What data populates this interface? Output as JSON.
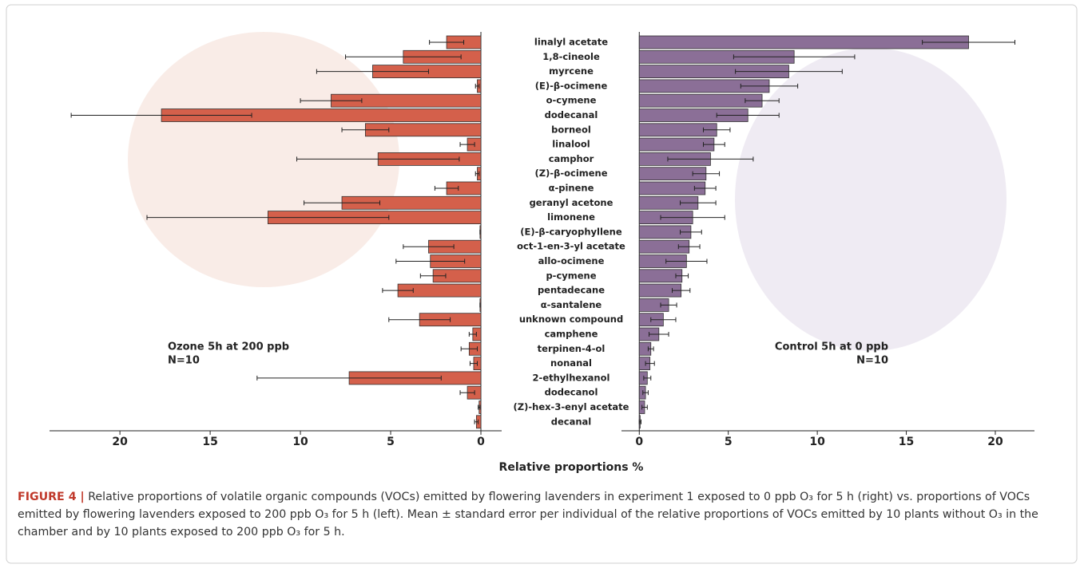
{
  "chart_data": [
    {
      "type": "bar",
      "orientation": "horizontal",
      "categories": [
        "linalyl acetate",
        "1,8-cineole",
        "myrcene",
        "(E)-β-ocimene",
        "o-cymene",
        "dodecanal",
        "borneol",
        "linalool",
        "camphor",
        "(Z)-β-ocimene",
        "α-pinene",
        "geranyl acetone",
        "limonene",
        "(E)-β-caryophyllene",
        "oct-1-en-3-yl acetate",
        "allo-ocimene",
        "p-cymene",
        "pentadecane",
        "α-santalene",
        "unknown compound",
        "camphene",
        "terpinen-4-ol",
        "nonanal",
        "2-ethylhexanol",
        "dodecanol",
        "(Z)-hex-3-enyl acetate",
        "decanal"
      ],
      "xlabel": "Relative proportions %",
      "annotation": [
        "Ozone 5h at 200 ppb",
        "N=10"
      ],
      "color": "#d4604b",
      "values": [
        1.9,
        4.3,
        6.0,
        0.2,
        8.3,
        17.7,
        6.4,
        0.75,
        5.7,
        0.2,
        1.9,
        7.7,
        11.8,
        0.05,
        2.9,
        2.8,
        2.65,
        4.6,
        0.05,
        3.4,
        0.45,
        0.65,
        0.4,
        7.3,
        0.75,
        0.1,
        0.25
      ],
      "errors": [
        0.95,
        3.2,
        3.1,
        0.1,
        1.7,
        5.0,
        1.3,
        0.4,
        4.5,
        0.1,
        0.65,
        2.1,
        6.7,
        0,
        1.4,
        1.9,
        0.7,
        0.85,
        0,
        1.7,
        0.2,
        0.45,
        0.2,
        5.1,
        0.4,
        0.05,
        0.1
      ],
      "xlim": [
        23.9,
        -1.15
      ],
      "xticks": [
        0,
        5,
        10,
        15,
        20
      ]
    },
    {
      "type": "bar",
      "orientation": "horizontal",
      "annotation": [
        "Control 5h at 0 ppb",
        "N=10"
      ],
      "color": "#8b6f97",
      "values": [
        18.5,
        8.7,
        8.4,
        7.3,
        6.9,
        6.1,
        4.35,
        4.2,
        4.0,
        3.75,
        3.7,
        3.3,
        3.0,
        2.9,
        2.8,
        2.65,
        2.4,
        2.35,
        1.65,
        1.35,
        1.1,
        0.65,
        0.6,
        0.45,
        0.35,
        0.3,
        0.05
      ],
      "errors": [
        2.6,
        3.4,
        3.0,
        1.6,
        0.95,
        1.75,
        0.75,
        0.6,
        2.4,
        0.75,
        0.6,
        1.0,
        1.8,
        0.6,
        0.6,
        1.15,
        0.35,
        0.5,
        0.45,
        0.7,
        0.55,
        0.15,
        0.25,
        0.2,
        0.15,
        0.15,
        0.05
      ],
      "xlim": [
        -1.0,
        22.2
      ],
      "xticks": [
        0,
        5,
        10,
        15,
        20
      ]
    }
  ],
  "caption": {
    "label": "FIGURE 4 |",
    "text": "Relative proportions of volatile organic compounds (VOCs) emitted by flowering lavenders in experiment 1 exposed to 0 ppb O₃ for 5 h (right) vs. proportions of VOCs emitted by flowering lavenders exposed to 200 ppb O₃ for 5 h (left). Mean ± standard error per individual of the relative proportions of VOCs emitted by 10 plants without O₃ in the chamber and by 10 plants exposed to 200 ppb O₃ for 5 h."
  }
}
